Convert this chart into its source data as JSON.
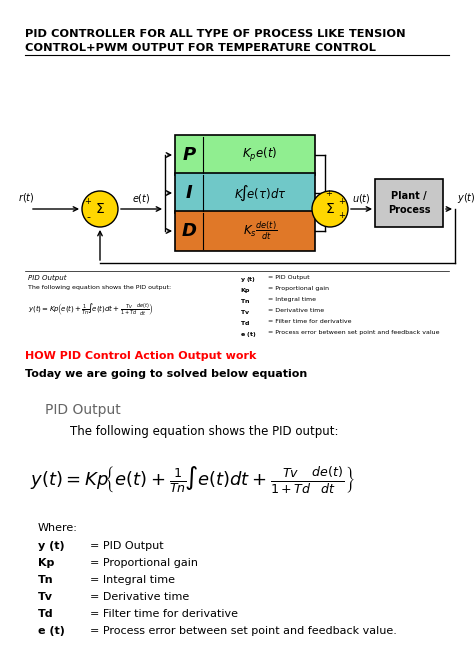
{
  "title_line1": "PID CONTROLLER FOR ALL TYPE OF PROCESS LIKE TENSION",
  "title_line2": "CONTROL+PWM OUTPUT FOR TEMPERATURE CONTROL",
  "bg_color": "#ffffff",
  "p_color": "#90EE90",
  "i_color": "#70C8C8",
  "d_color": "#E07828",
  "plant_color": "#C8C8C8",
  "sum_color": "#FFD700",
  "how_text": "HOW PID Control Action Output work",
  "today_text": "Today we are going to solved below equation",
  "pid_output_title": "PID Output",
  "pid_output_subtitle": "The following equation shows the PID output:",
  "where_label": "Where:",
  "variables": [
    [
      "y (t)",
      "= PID Output"
    ],
    [
      "Kp",
      "= Proportional gain"
    ],
    [
      "Tn",
      "= Integral time"
    ],
    [
      "Tv",
      "= Derivative time"
    ],
    [
      "Td",
      "= Filter time for derivative"
    ],
    [
      "e (t)",
      "= Process error between set point and feedback value."
    ]
  ]
}
